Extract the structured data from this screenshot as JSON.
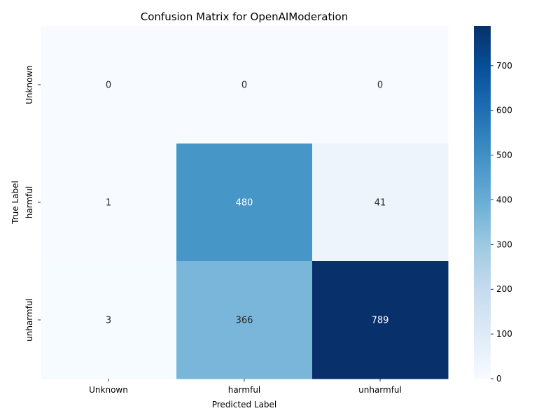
{
  "chart_data": {
    "type": "heatmap",
    "title": "Confusion Matrix for OpenAIModeration",
    "xlabel": "Predicted Label",
    "ylabel": "True Label",
    "x_categories": [
      "Unknown",
      "harmful",
      "unharmful"
    ],
    "y_categories": [
      "Unknown",
      "harmful",
      "unharmful"
    ],
    "values": [
      [
        0,
        0,
        0
      ],
      [
        1,
        480,
        41
      ],
      [
        3,
        366,
        789
      ]
    ],
    "colormap": "Blues",
    "colorbar": {
      "min": 0,
      "max": 789,
      "ticks": [
        0,
        100,
        200,
        300,
        400,
        500,
        600,
        700
      ]
    },
    "grid": false
  }
}
